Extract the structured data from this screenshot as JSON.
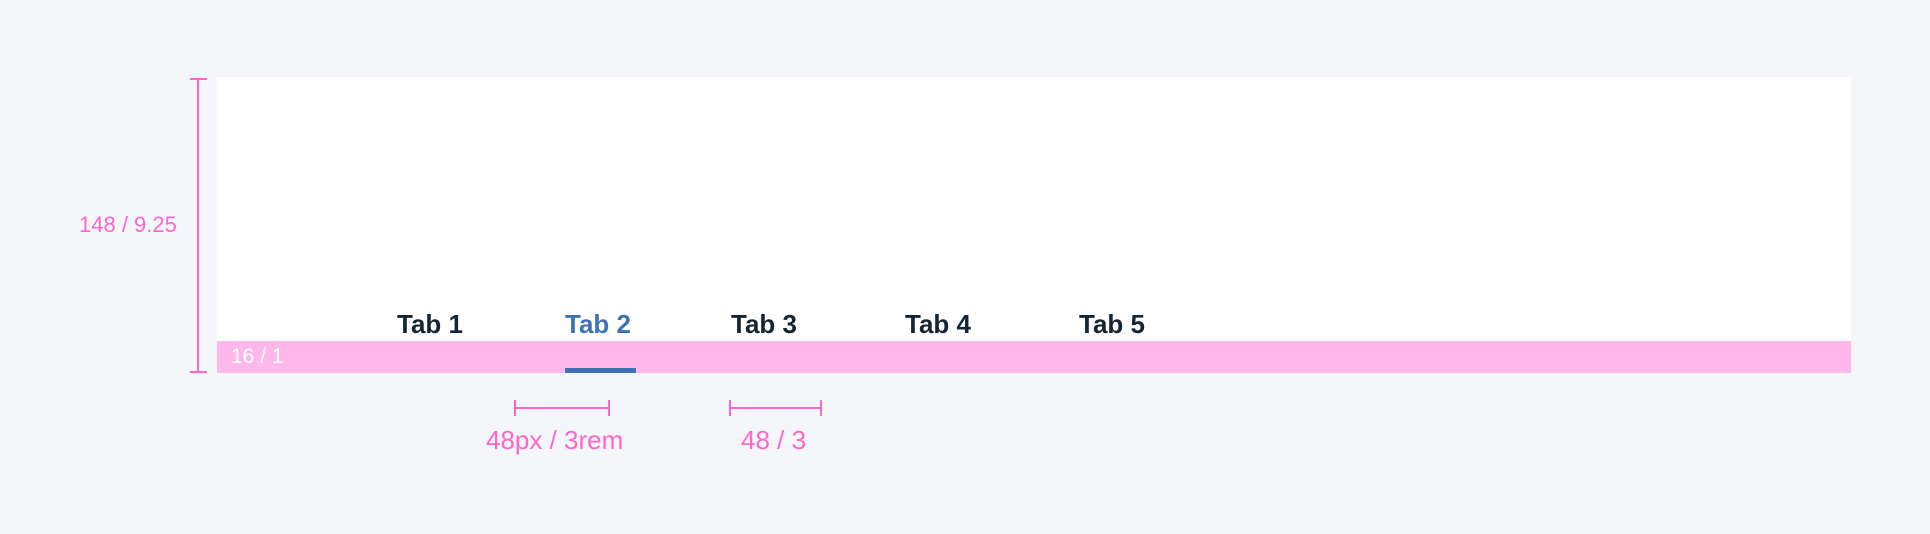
{
  "tabs": [
    {
      "label": "Tab 1",
      "active": false
    },
    {
      "label": "Tab 2",
      "active": true
    },
    {
      "label": "Tab 3",
      "active": false
    },
    {
      "label": "Tab 4",
      "active": false
    },
    {
      "label": "Tab 5",
      "active": false
    }
  ],
  "annotations": {
    "height_label": "148 / 9.25",
    "padding_label": "16 / 1",
    "indicator_width_label": "48px / 3rem",
    "gap_label": "48 / 3"
  },
  "colors": {
    "background": "#f5f6f9",
    "panel": "#ffffff",
    "spacing_band": "#ffb8e9",
    "annotation": "#ff66c9",
    "tab_text": "#172433",
    "tab_active": "#3d72b8"
  }
}
